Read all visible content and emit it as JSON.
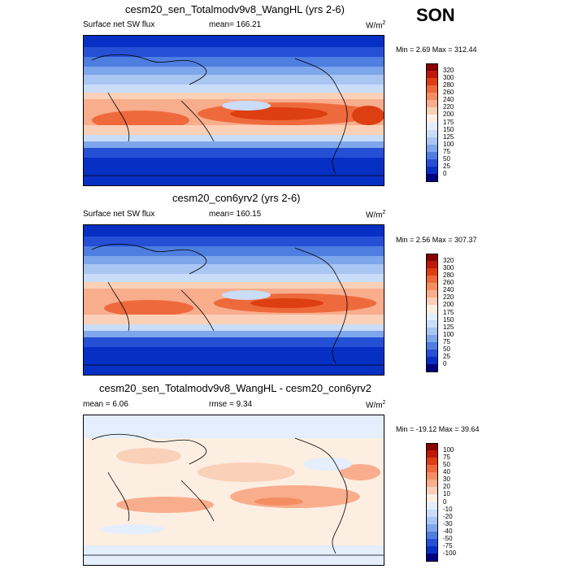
{
  "season": "SON",
  "panels": [
    {
      "title": "cesm20_sen_Totalmodv9v8_WangHL (yrs 2-6)",
      "left_label": "Surface net SW flux",
      "center_label": "mean= 166.21",
      "units": "W/m",
      "units_exp": "2",
      "minmax": "Min = 2.69 Max = 312.44",
      "colorbar": {
        "ticks": [
          "320",
          "300",
          "280",
          "260",
          "240",
          "220",
          "200",
          "175",
          "150",
          "125",
          "100",
          "75",
          "50",
          "25",
          "0"
        ],
        "colors": [
          "#8b0000",
          "#c01808",
          "#dd3e12",
          "#ee6a3c",
          "#f58d63",
          "#f8ad8c",
          "#fbd0b8",
          "#fdeee2",
          "#e4eefc",
          "#c9dcf8",
          "#a9c5f2",
          "#7ea6ea",
          "#4d7ee0",
          "#2550d6",
          "#0630c4",
          "#000080"
        ]
      }
    },
    {
      "title": "cesm20_con6yrv2 (yrs 2-6)",
      "left_label": "Surface net SW flux",
      "center_label": "mean= 160.15",
      "units": "W/m",
      "units_exp": "2",
      "minmax": "Min = 2.56 Max = 307.37",
      "colorbar": {
        "ticks": [
          "320",
          "300",
          "280",
          "260",
          "240",
          "220",
          "200",
          "175",
          "150",
          "125",
          "100",
          "75",
          "50",
          "25",
          "0"
        ],
        "colors": [
          "#8b0000",
          "#c01808",
          "#dd3e12",
          "#ee6a3c",
          "#f58d63",
          "#f8ad8c",
          "#fbd0b8",
          "#fdeee2",
          "#e4eefc",
          "#c9dcf8",
          "#a9c5f2",
          "#7ea6ea",
          "#4d7ee0",
          "#2550d6",
          "#0630c4",
          "#000080"
        ]
      }
    },
    {
      "title": "cesm20_sen_Totalmodv9v8_WangHL - cesm20_con6yrv2",
      "left_label": "mean = 6.06",
      "center_label": "rmse = 9.34",
      "units": "W/m",
      "units_exp": "2",
      "minmax": "Min = -19.12 Max = 39.64",
      "colorbar": {
        "ticks": [
          "100",
          "75",
          "50",
          "40",
          "30",
          "20",
          "10",
          "0",
          "-10",
          "-20",
          "-30",
          "-40",
          "-50",
          "-75",
          "-100"
        ],
        "colors": [
          "#8b0000",
          "#c01808",
          "#dd3e12",
          "#ee6a3c",
          "#f58d63",
          "#f8ad8c",
          "#fbd0b8",
          "#fdeee2",
          "#e4eefc",
          "#c9dcf8",
          "#a9c5f2",
          "#7ea6ea",
          "#4d7ee0",
          "#2550d6",
          "#0630c4",
          "#000080"
        ]
      }
    }
  ]
}
